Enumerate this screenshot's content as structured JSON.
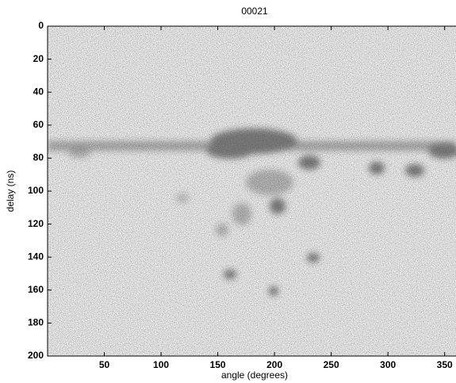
{
  "chart_data": {
    "type": "image",
    "title": "00021",
    "x_label": "angle (degrees)",
    "y_label": "delay (ns)",
    "xlim": [
      0,
      360
    ],
    "xticks": [
      50,
      100,
      150,
      200,
      250,
      300,
      350
    ],
    "ylim": [
      200,
      0
    ],
    "yticks": [
      0,
      20,
      40,
      60,
      80,
      100,
      120,
      140,
      160,
      180,
      200
    ]
  }
}
